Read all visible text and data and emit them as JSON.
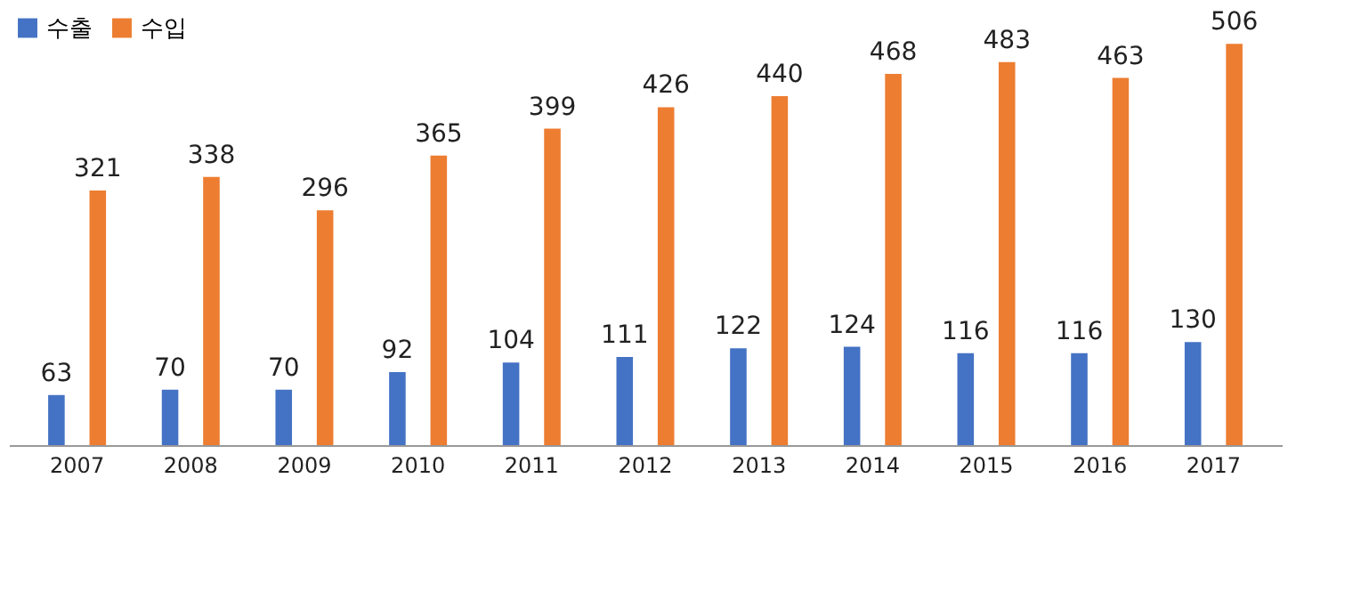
{
  "chart_data": {
    "type": "bar",
    "categories": [
      "2007",
      "2008",
      "2009",
      "2010",
      "2011",
      "2012",
      "2013",
      "2014",
      "2015",
      "2016",
      "2017"
    ],
    "series": [
      {
        "name": "수출",
        "color": "#4472c4",
        "values": [
          63,
          70,
          70,
          92,
          104,
          111,
          122,
          124,
          116,
          116,
          130
        ]
      },
      {
        "name": "수입",
        "color": "#ed7d31",
        "values": [
          321,
          338,
          296,
          365,
          399,
          426,
          440,
          468,
          483,
          463,
          506
        ]
      }
    ],
    "data_labels": true,
    "legend": "top left",
    "grid": false
  }
}
